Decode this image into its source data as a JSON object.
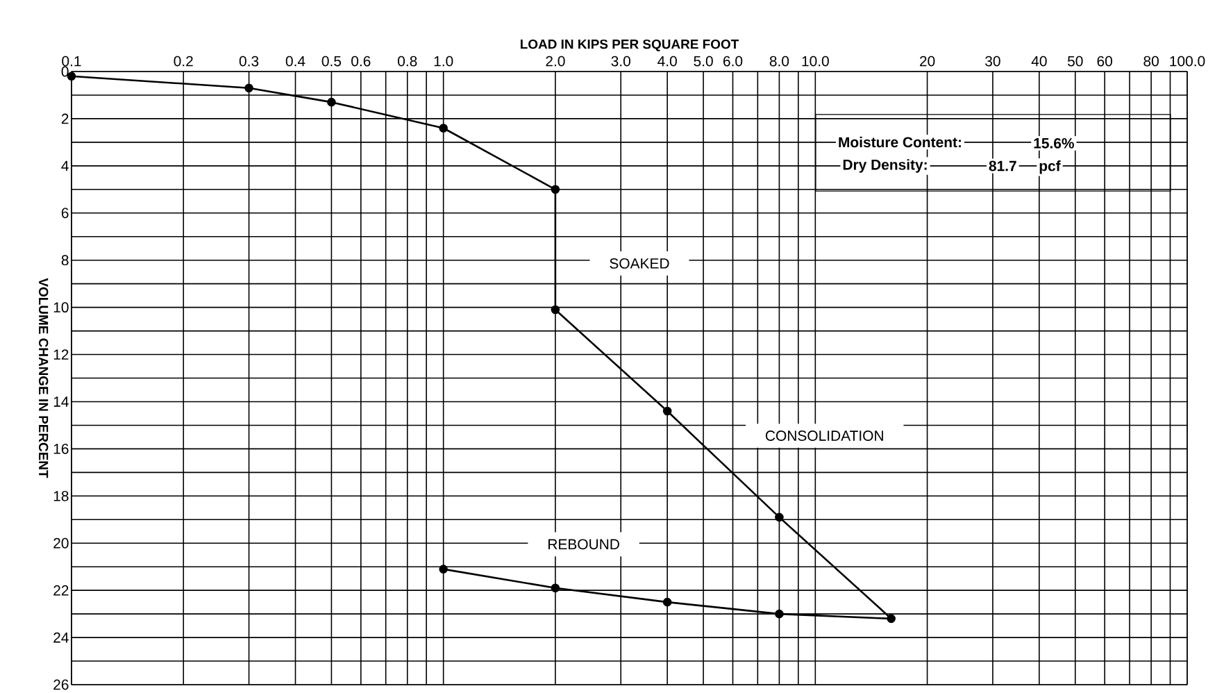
{
  "chart_data": {
    "type": "line",
    "xlabel": "LOAD IN KIPS PER SQUARE FOOT",
    "ylabel": "VOLUME CHANGE IN PERCENT",
    "log": "x",
    "xlim": [
      0.1,
      100
    ],
    "ylim": [
      26,
      0
    ],
    "xticks": [
      0.1,
      0.2,
      0.3,
      0.4,
      0.5,
      0.6,
      {
        "value": 0.7,
        "label": null
      },
      0.8,
      {
        "value": 0.9,
        "label": null
      },
      {
        "value": 1,
        "label": "1.0"
      },
      {
        "value": 2,
        "label": "2.0"
      },
      {
        "value": 3,
        "label": "3.0"
      },
      {
        "value": 4,
        "label": "4.0"
      },
      {
        "value": 5,
        "label": "5.0"
      },
      {
        "value": 6,
        "label": "6.0"
      },
      {
        "value": 7,
        "label": null
      },
      {
        "value": 8,
        "label": "8.0"
      },
      {
        "value": 9,
        "label": null
      },
      {
        "value": 10,
        "label": "10.0"
      },
      20,
      30,
      40,
      50,
      60,
      {
        "value": 70,
        "label": null
      },
      80,
      {
        "value": 90,
        "label": null
      },
      {
        "value": 100,
        "label": "100.0"
      }
    ],
    "yticks": [
      0,
      {
        "value": 1,
        "label": null
      },
      2,
      {
        "value": 3,
        "label": null
      },
      4,
      {
        "value": 5,
        "label": null
      },
      6,
      {
        "value": 7,
        "label": null
      },
      8,
      {
        "value": 9,
        "label": null
      },
      10,
      {
        "value": 11,
        "label": null
      },
      12,
      {
        "value": 13,
        "label": null
      },
      14,
      {
        "value": 15,
        "label": null
      },
      16,
      {
        "value": 17,
        "label": null
      },
      18,
      {
        "value": 19,
        "label": null
      },
      20,
      {
        "value": 21,
        "label": null
      },
      22,
      {
        "value": 23,
        "label": null
      },
      24,
      {
        "value": 25,
        "label": null
      },
      26
    ],
    "grid": true,
    "marker": "circle",
    "line_style": "solid",
    "series": [
      {
        "color": "#000000",
        "x": [
          0.1,
          0.3,
          0.5,
          1,
          2,
          2,
          4,
          8,
          16,
          8,
          4,
          2,
          1
        ],
        "values": [
          0.2,
          0.7,
          1.3,
          2.4,
          5.0,
          10.1,
          14.4,
          18.9,
          23.2,
          23.0,
          22.5,
          21.9,
          21.1
        ]
      }
    ],
    "annotations": [
      "SOAKED",
      "CONSOLIDATION",
      "REBOUND",
      "Moisture Content:",
      "15.6%",
      "Dry Density:",
      "81.7",
      "pcf"
    ]
  }
}
